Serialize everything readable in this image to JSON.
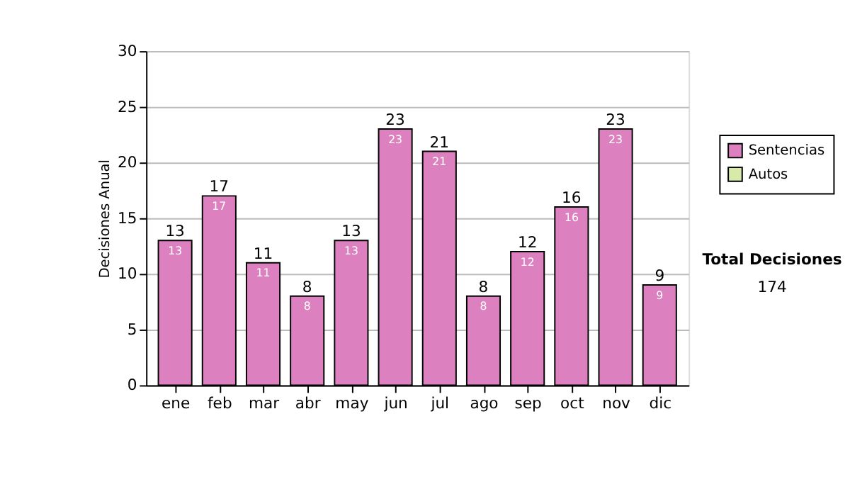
{
  "chart_data": {
    "type": "bar",
    "stacked": true,
    "ylabel": "Decisiones Anual",
    "categories": [
      "ene",
      "feb",
      "mar",
      "abr",
      "may",
      "jun",
      "jul",
      "ago",
      "sep",
      "oct",
      "nov",
      "dic"
    ],
    "series": [
      {
        "name": "Sentencias",
        "color": "#dd80bf",
        "values": [
          13,
          17,
          11,
          8,
          13,
          23,
          21,
          8,
          12,
          16,
          23,
          9
        ],
        "value_labels": [
          "13",
          "17",
          "11",
          "8",
          "13",
          "23",
          "21",
          "8",
          "12",
          "16",
          "23",
          "9"
        ]
      },
      {
        "name": "Autos",
        "color": "#d8eaa8",
        "values": [
          null,
          null,
          null,
          null,
          null,
          null,
          null,
          null,
          null,
          null,
          null,
          null
        ]
      }
    ],
    "totals": [
      "13",
      "17",
      "11",
      "8",
      "13",
      "23",
      "21",
      "8",
      "12",
      "16",
      "23",
      "9"
    ],
    "ylim": [
      0,
      30
    ],
    "yticks": [
      0,
      5,
      10,
      15,
      20,
      25,
      30
    ],
    "grid": "y",
    "legend": "right",
    "annotations": [
      "Total Decisiones",
      "174"
    ]
  }
}
